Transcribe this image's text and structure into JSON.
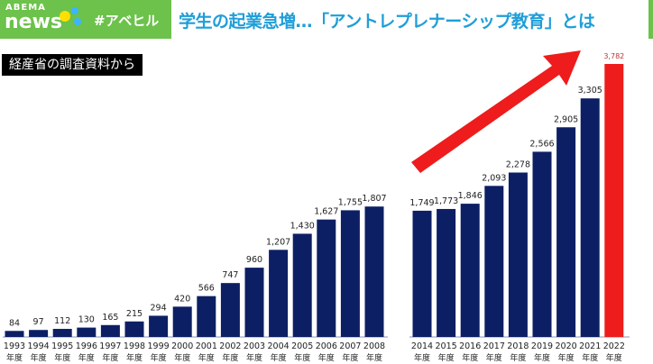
{
  "header": {
    "brand_top": "ABEMA",
    "brand_bottom": "news",
    "hashtag": "#アベヒル",
    "title": "学生の起業急増…「アントレプレナーシップ教育」とは"
  },
  "source_label": "経産省の調査資料から",
  "colors": {
    "bar": "#0d1f64",
    "highlight": "#ee1c1c",
    "header_green": "#6cc24a",
    "title_blue": "#1f9ed8"
  },
  "chart_data": {
    "type": "bar",
    "title": "",
    "xlabel": "",
    "ylabel": "",
    "ylim": [
      0,
      3782
    ],
    "grid": false,
    "unit_label": "年度",
    "categories": [
      "1993",
      "1994",
      "1995",
      "1996",
      "1997",
      "1998",
      "1999",
      "2000",
      "2001",
      "2002",
      "2003",
      "2004",
      "2005",
      "2006",
      "2007",
      "2008",
      "2014",
      "2015",
      "2016",
      "2017",
      "2018",
      "2019",
      "2020",
      "2021",
      "2022"
    ],
    "values": [
      84,
      97,
      112,
      130,
      165,
      215,
      294,
      420,
      566,
      747,
      960,
      1207,
      1430,
      1627,
      1755,
      1807,
      1749,
      1773,
      1846,
      2093,
      2278,
      2566,
      2905,
      3305,
      3782
    ],
    "value_labels": [
      "84",
      "97",
      "112",
      "130",
      "165",
      "215",
      "294",
      "420",
      "566",
      "747",
      "960",
      "1,207",
      "1,430",
      "1,627",
      "1,755",
      "1,807",
      "1,749",
      "1,773",
      "1,846",
      "2,093",
      "2,278",
      "2,566",
      "2,905",
      "3,305",
      "3,782"
    ],
    "highlight": "2022",
    "annotation": "red upward arrow"
  }
}
